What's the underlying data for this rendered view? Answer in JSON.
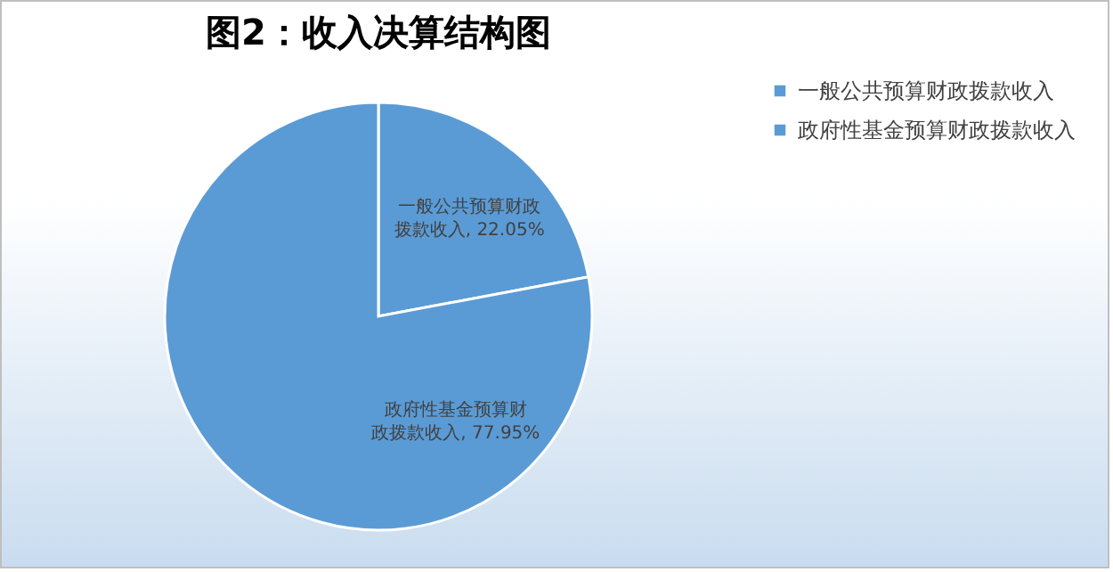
{
  "chart_data": {
    "type": "pie",
    "title": "图2：收入决算结构图",
    "categories": [
      "一般公共预算财政拨款收入",
      "政府性基金预算财政拨款收入"
    ],
    "values": [
      22.05,
      77.95
    ],
    "colors": [
      "#5b9bd5",
      "#5b9bd5"
    ],
    "value_labels": [
      "一般公共预算财政拨款收入, 22.05%",
      "政府性基金预算财政拨款收入, 77.95%"
    ],
    "legend": "right"
  }
}
